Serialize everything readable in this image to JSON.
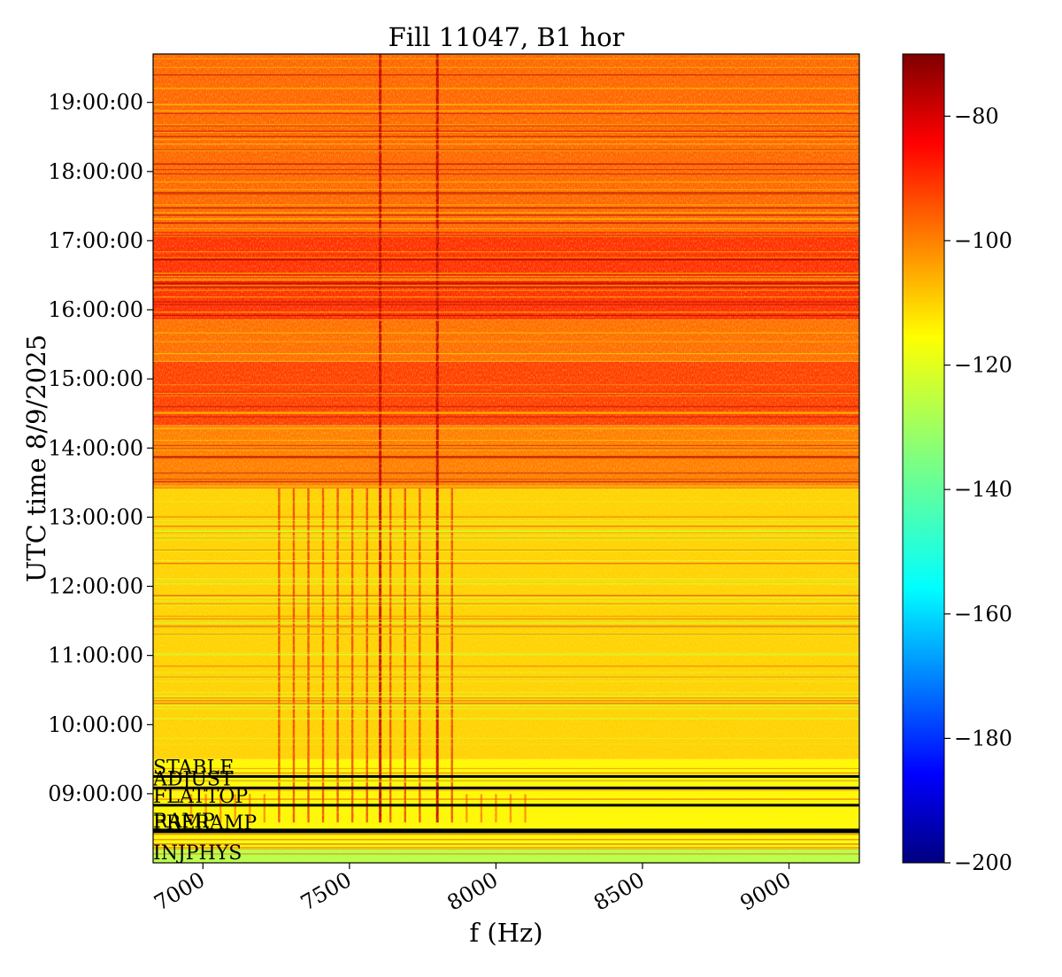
{
  "chart_data": {
    "type": "heatmap",
    "title": "Fill 11047, B1 hor",
    "xlabel": "f (Hz)",
    "ylabel": "UTC time 8/9/2025",
    "xlim": [
      6830,
      9240
    ],
    "ylim": [
      "08:00:00",
      "19:42:00"
    ],
    "x_ticks": [
      7000,
      7500,
      8000,
      8500,
      9000
    ],
    "x_tick_labels": [
      "7000",
      "7500",
      "8000",
      "8500",
      "9000"
    ],
    "y_ticks": [
      "09:00:00",
      "10:00:00",
      "11:00:00",
      "12:00:00",
      "13:00:00",
      "14:00:00",
      "15:00:00",
      "16:00:00",
      "17:00:00",
      "18:00:00",
      "19:00:00"
    ],
    "colorbar": {
      "colormap": "jet",
      "range": [
        -200,
        -70
      ],
      "ticks": [
        -200,
        -180,
        -160,
        -140,
        -120,
        -100,
        -80
      ],
      "tick_labels": [
        "−200",
        "−180",
        "−160",
        "−140",
        "−120",
        "−100",
        "−80"
      ]
    },
    "regions": [
      {
        "from": "08:00:00",
        "to": "08:12:00",
        "level_dB": -128
      },
      {
        "from": "08:12:00",
        "to": "09:30:00",
        "level_dB": -118
      },
      {
        "from": "09:30:00",
        "to": "13:25:00",
        "level_dB": -113
      },
      {
        "from": "13:25:00",
        "to": "14:20:00",
        "level_dB": -102
      },
      {
        "from": "14:20:00",
        "to": "15:15:00",
        "level_dB": -94
      },
      {
        "from": "15:15:00",
        "to": "15:50:00",
        "level_dB": -100
      },
      {
        "from": "15:50:00",
        "to": "17:10:00",
        "level_dB": -92
      },
      {
        "from": "17:10:00",
        "to": "19:42:00",
        "level_dB": -99
      }
    ],
    "lines_Hz": [
      7605,
      7800,
      7640,
      7690,
      7740,
      7850,
      7560,
      7510,
      7460,
      7410,
      7360,
      7310,
      7260,
      7210,
      7160,
      7110,
      7060,
      7010,
      6960,
      7900,
      7950,
      8000,
      8050,
      8100
    ],
    "beam_modes": [
      {
        "label": "STABLE",
        "time": "09:15:00"
      },
      {
        "label": "ADJUST",
        "time": "09:05:00"
      },
      {
        "label": "FLATTOP",
        "time": "08:50:00"
      },
      {
        "label": "RAMP",
        "time": "08:28:30"
      },
      {
        "label": "PRERAMP",
        "time": "08:27:00"
      },
      {
        "label": "INJPHYS",
        "time": "08:00:00"
      }
    ]
  }
}
